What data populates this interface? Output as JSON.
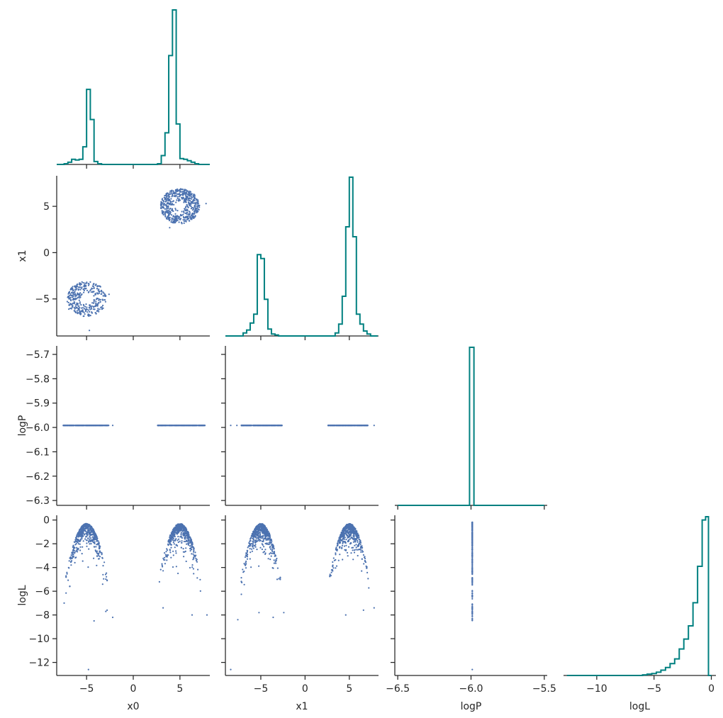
{
  "chart_data": {
    "type": "scatter",
    "layout": "corner-pairplot",
    "variables": [
      "x0",
      "x1",
      "logP",
      "logL"
    ],
    "colors": {
      "hist": "#008080",
      "scatter": "#4c72b0",
      "axis": "#262626"
    },
    "grid": false,
    "legend": "none",
    "panels": [
      {
        "id": "hist-x0",
        "type": "histogram",
        "variable": "x0",
        "row": 0,
        "col": 0,
        "x": {
          "label": "",
          "lim": [
            -8.2,
            8.2
          ],
          "ticks": [
            -5,
            0,
            5
          ],
          "tick_labels": [
            "",
            "",
            ""
          ]
        },
        "bin_edges": [
          -8.2,
          -7.8,
          -7.4,
          -7.0,
          -6.6,
          -6.2,
          -5.8,
          -5.4,
          -5.0,
          -4.6,
          -4.2,
          -3.8,
          -3.4,
          -3.0,
          -2.6,
          -2.2,
          -1.8,
          -1.4,
          -1.0,
          -0.6,
          -0.2,
          0.2,
          0.6,
          1.0,
          1.4,
          1.8,
          2.2,
          2.6,
          3.0,
          3.4,
          3.8,
          4.2,
          4.6,
          5.0,
          5.4,
          5.8,
          6.2,
          6.6,
          7.0,
          7.4,
          7.8,
          8.2
        ],
        "counts": [
          0,
          0,
          1,
          3,
          7,
          6,
          7,
          24,
          102,
          61,
          4,
          1,
          0,
          0,
          0,
          0,
          0,
          0,
          0,
          0,
          0,
          0,
          0,
          0,
          0,
          0,
          0,
          1,
          12,
          43,
          148,
          210,
          55,
          8,
          7,
          5,
          3,
          1,
          0,
          0,
          0
        ]
      },
      {
        "id": "scatter-x0-x1",
        "type": "scatter",
        "row": 1,
        "col": 0,
        "x_var": "x0",
        "y_var": "x1",
        "x": {
          "label": "",
          "lim": [
            -8.2,
            8.2
          ],
          "ticks": [
            -5,
            0,
            5
          ],
          "tick_labels": [
            "",
            "",
            ""
          ]
        },
        "y": {
          "label": "x1",
          "lim": [
            -9.0,
            8.3
          ],
          "ticks": [
            -5,
            0,
            5
          ],
          "tick_labels": [
            "−5",
            "0",
            "5"
          ]
        },
        "clusters": [
          {
            "center": [
              -5.0,
              -5.0
            ],
            "r_min": 0.5,
            "r_max": 2.1,
            "n": 340
          },
          {
            "center": [
              5.0,
              5.0
            ],
            "r_min": 0.5,
            "r_max": 2.1,
            "n": 540
          }
        ],
        "extra_points": [
          [
            -4.7,
            -8.4
          ],
          [
            -2.6,
            -4.5
          ],
          [
            -6.9,
            -6.1
          ],
          [
            7.8,
            5.3
          ],
          [
            3.9,
            2.7
          ]
        ]
      },
      {
        "id": "hist-x1",
        "type": "histogram",
        "variable": "x1",
        "row": 1,
        "col": 1,
        "x": {
          "label": "",
          "lim": [
            -9.0,
            8.3
          ],
          "ticks": [
            -5,
            0,
            5
          ],
          "tick_labels": [
            "",
            "",
            ""
          ]
        },
        "bin_edges": [
          -9.0,
          -8.6,
          -8.2,
          -7.8,
          -7.4,
          -7.0,
          -6.6,
          -6.2,
          -5.8,
          -5.4,
          -5.0,
          -4.6,
          -4.2,
          -3.8,
          -3.4,
          -3.0,
          -2.6,
          -2.2,
          -1.8,
          -1.4,
          -1.0,
          -0.6,
          -0.2,
          0.2,
          0.6,
          1.0,
          1.4,
          1.8,
          2.2,
          2.6,
          3.0,
          3.4,
          3.8,
          4.2,
          4.6,
          5.0,
          5.4,
          5.8,
          6.2,
          6.6,
          7.0,
          7.4,
          7.8,
          8.2
        ],
        "counts": [
          0,
          0,
          0,
          0,
          0,
          3,
          6,
          13,
          22,
          82,
          78,
          37,
          7,
          2,
          1,
          0,
          0,
          0,
          0,
          0,
          0,
          0,
          0,
          0,
          0,
          0,
          0,
          0,
          0,
          0,
          0,
          3,
          12,
          40,
          110,
          160,
          100,
          22,
          12,
          5,
          2,
          0,
          0
        ]
      },
      {
        "id": "scatter-x0-logP",
        "type": "scatter",
        "row": 2,
        "col": 0,
        "x_var": "x0",
        "y_var": "logP",
        "x": {
          "label": "",
          "lim": [
            -8.2,
            8.2
          ],
          "ticks": [
            -5,
            0,
            5
          ],
          "tick_labels": [
            "",
            "",
            ""
          ]
        },
        "y": {
          "label": "logP",
          "lim": [
            -6.32,
            -5.665
          ],
          "ticks": [
            -6.3,
            -6.2,
            -6.1,
            -6.0,
            -5.9,
            -5.8,
            -5.7
          ],
          "tick_labels": [
            "−6.3",
            "−6.2",
            "−6.1",
            "−6.0",
            "−5.9",
            "−5.8",
            "−5.7"
          ]
        },
        "constant_y": -5.9915,
        "x_ranges": [
          [
            -7.5,
            -2.6
          ],
          [
            2.6,
            7.7
          ]
        ],
        "extra_x": [
          -2.2,
          3.0
        ]
      },
      {
        "id": "scatter-x1-logP",
        "type": "scatter",
        "row": 2,
        "col": 1,
        "x_var": "x1",
        "y_var": "logP",
        "x": {
          "label": "",
          "lim": [
            -9.0,
            8.3
          ],
          "ticks": [
            -5,
            0,
            5
          ],
          "tick_labels": [
            "",
            "",
            ""
          ]
        },
        "y": {
          "label": "",
          "lim": [
            -6.32,
            -5.665
          ],
          "ticks": [
            -6.3,
            -6.2,
            -6.1,
            -6.0,
            -5.9,
            -5.8,
            -5.7
          ],
          "tick_labels": [
            "",
            "",
            "",
            "",
            "",
            "",
            ""
          ]
        },
        "constant_y": -5.9915,
        "x_ranges": [
          [
            -7.2,
            -2.6
          ],
          [
            2.6,
            7.1
          ]
        ],
        "extra_x": [
          -8.4,
          -7.7,
          7.8
        ]
      },
      {
        "id": "hist-logP",
        "type": "histogram",
        "variable": "logP",
        "row": 2,
        "col": 2,
        "x": {
          "label": "",
          "lim": [
            -6.52,
            -5.48
          ],
          "ticks": [
            -6.5,
            -6.0,
            -5.5
          ],
          "tick_labels": [
            "",
            "",
            ""
          ]
        },
        "bin_edges": [
          -6.5,
          -6.01,
          -5.98,
          -5.5
        ],
        "counts": [
          0,
          900,
          0
        ]
      },
      {
        "id": "scatter-x0-logL",
        "type": "scatter",
        "row": 3,
        "col": 0,
        "x_var": "x0",
        "y_var": "logL",
        "x": {
          "label": "x0",
          "lim": [
            -8.2,
            8.2
          ],
          "ticks": [
            -5,
            0,
            5
          ],
          "tick_labels": [
            "−5",
            "0",
            "5"
          ]
        },
        "y": {
          "label": "logL",
          "lim": [
            -13.1,
            0.4
          ],
          "ticks": [
            -12,
            -10,
            -8,
            -6,
            -4,
            -2,
            0
          ],
          "tick_labels": [
            "−12",
            "−10",
            "−8",
            "−6",
            "−4",
            "−2",
            "0"
          ]
        },
        "parabola_centers": [
          -5.0,
          5.0
        ],
        "extra_points": [
          [
            -7.4,
            -7.0
          ],
          [
            -4.8,
            -12.6
          ],
          [
            -4.2,
            -8.5
          ],
          [
            -2.2,
            -8.2
          ],
          [
            -2.8,
            -7.6
          ],
          [
            -6.8,
            -5.6
          ],
          [
            6.3,
            -8.0
          ],
          [
            7.9,
            -8.0
          ],
          [
            3.2,
            -7.4
          ]
        ]
      },
      {
        "id": "scatter-x1-logL",
        "type": "scatter",
        "row": 3,
        "col": 1,
        "x_var": "x1",
        "y_var": "logL",
        "x": {
          "label": "x1",
          "lim": [
            -9.0,
            8.3
          ],
          "ticks": [
            -5,
            0,
            5
          ],
          "tick_labels": [
            "−5",
            "0",
            "5"
          ]
        },
        "y": {
          "label": "",
          "lim": [
            -13.1,
            0.4
          ],
          "ticks": [
            -12,
            -10,
            -8,
            -6,
            -4,
            -2,
            0
          ],
          "tick_labels": [
            "",
            "",
            "",
            "",
            "",
            "",
            ""
          ]
        },
        "parabola_centers": [
          -5.0,
          5.0
        ],
        "extra_points": [
          [
            -8.4,
            -12.6
          ],
          [
            -7.6,
            -8.4
          ],
          [
            -5.2,
            -7.8
          ],
          [
            -3.6,
            -8.2
          ],
          [
            -2.4,
            -7.8
          ],
          [
            7.8,
            -7.4
          ],
          [
            6.6,
            -7.6
          ],
          [
            4.6,
            -8.0
          ]
        ]
      },
      {
        "id": "scatter-logP-logL",
        "type": "scatter",
        "row": 3,
        "col": 2,
        "x_var": "logP",
        "y_var": "logL",
        "x": {
          "label": "logP",
          "lim": [
            -6.52,
            -5.48
          ],
          "ticks": [
            -6.5,
            -6.0,
            -5.5
          ],
          "tick_labels": [
            "−6.5",
            "−6.0",
            "−5.5"
          ]
        },
        "y": {
          "label": "",
          "lim": [
            -13.1,
            0.4
          ],
          "ticks": [
            -12,
            -10,
            -8,
            -6,
            -4,
            -2,
            0
          ],
          "tick_labels": [
            "",
            "",
            "",
            "",
            "",
            "",
            ""
          ]
        },
        "constant_x": -5.9915,
        "y_range": [
          -8.5,
          -0.2
        ],
        "extra_points": [
          [
            -5.9915,
            -12.6
          ]
        ]
      },
      {
        "id": "hist-logL",
        "type": "histogram",
        "variable": "logL",
        "row": 3,
        "col": 3,
        "x": {
          "label": "logL",
          "lim": [
            -12.9,
            0.4
          ],
          "ticks": [
            -10,
            -5,
            0
          ],
          "tick_labels": [
            "−10",
            "−5",
            "0"
          ]
        },
        "bin_edges": [
          -12.6,
          -6.0,
          -5.6,
          -5.2,
          -4.8,
          -4.4,
          -4.0,
          -3.6,
          -3.2,
          -2.8,
          -2.4,
          -2.0,
          -1.6,
          -1.2,
          -0.8,
          -0.5,
          -0.25,
          0.0
        ],
        "counts": [
          0,
          1,
          2,
          3,
          5,
          8,
          12,
          18,
          25,
          40,
          55,
          75,
          110,
          165,
          235,
          240,
          0
        ]
      }
    ]
  }
}
